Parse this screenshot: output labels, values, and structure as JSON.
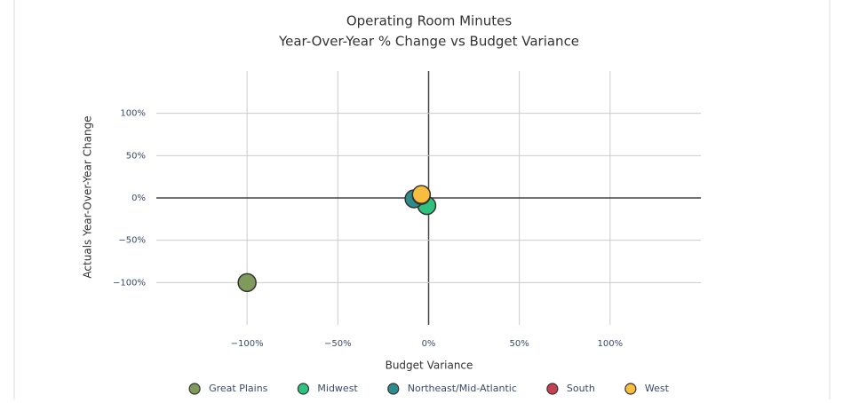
{
  "chart_data": {
    "type": "scatter",
    "title": "Operating Room Minutes",
    "subtitle": "Year-Over-Year % Change vs Budget Variance",
    "x_label": "Budget Variance",
    "y_label": "Actuals Year-Over-Year Change",
    "xlim": [
      -150,
      150
    ],
    "ylim": [
      -150,
      150
    ],
    "xticks": [
      {
        "value": -100,
        "label": "−100%"
      },
      {
        "value": -50,
        "label": "−50%"
      },
      {
        "value": 0,
        "label": "0%"
      },
      {
        "value": 50,
        "label": "50%"
      },
      {
        "value": 100,
        "label": "100%"
      }
    ],
    "yticks": [
      {
        "value": -100,
        "label": "−100%"
      },
      {
        "value": -50,
        "label": "−50%"
      },
      {
        "value": 0,
        "label": "0%"
      },
      {
        "value": 50,
        "label": "50%"
      },
      {
        "value": 100,
        "label": "100%"
      }
    ],
    "grid": true,
    "legend": "bottom",
    "series": [
      {
        "name": "Great Plains",
        "color": "#7f9a5a",
        "x": [
          -100
        ],
        "values": [
          -100
        ]
      },
      {
        "name": "Midwest",
        "color": "#2ec27e",
        "x": [
          -1
        ],
        "values": [
          -9
        ]
      },
      {
        "name": "Northeast/Mid-Atlantic",
        "color": "#2f8c8c",
        "x": [
          -8
        ],
        "values": [
          -1
        ]
      },
      {
        "name": "South",
        "color": "#c4414f",
        "x": [
          -4
        ],
        "values": [
          3
        ]
      },
      {
        "name": "West",
        "color": "#f7bd3e",
        "x": [
          -4
        ],
        "values": [
          4
        ]
      }
    ]
  }
}
